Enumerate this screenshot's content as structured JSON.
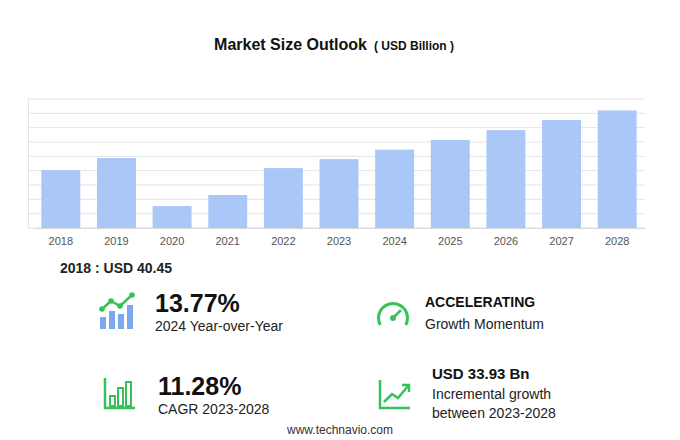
{
  "chart_data": {
    "type": "bar",
    "title": "Market Size Outlook",
    "subtitle": "( USD Billion )",
    "categories": [
      "2018",
      "2019",
      "2020",
      "2021",
      "2022",
      "2023",
      "2024",
      "2025",
      "2026",
      "2027",
      "2028"
    ],
    "values": [
      40.45,
      48.8,
      15.3,
      23.0,
      41.8,
      48.06,
      54.68,
      61.4,
      68.3,
      75.3,
      81.99
    ],
    "color": "#a9c8f8",
    "ylim": [
      0,
      90
    ],
    "yticks": [
      0,
      10,
      20,
      30,
      40,
      50,
      60,
      70,
      80,
      90
    ],
    "grid": true,
    "tick_labels": "x",
    "annotations": [
      "2018 : USD 40.45",
      "13.77%",
      "2024 Year-over-Year",
      "ACCELERATING",
      "Growth Momentum",
      "11.28%",
      "CAGR 2023-2028",
      "USD 33.93 Bn",
      "Incremental growth",
      "between 2023-2028",
      "www.technavio.com"
    ]
  }
}
